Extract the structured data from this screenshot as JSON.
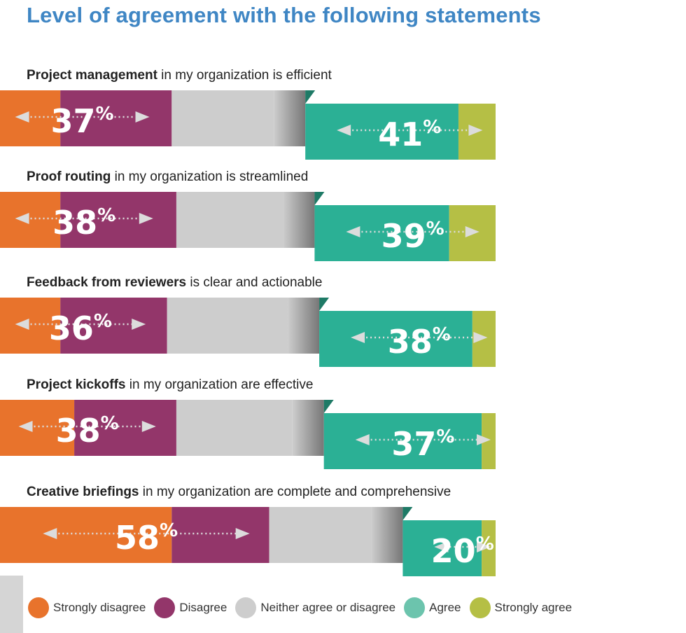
{
  "title": "Level of agreement with the following statements",
  "colors": {
    "strongly_disagree": "#e8732c",
    "disagree": "#93366a",
    "neither": "#cdcdcd",
    "agree": "#2bb095",
    "strongly_agree": "#b5bf45",
    "title": "#3f86c4",
    "arrow": "#dcdcdc"
  },
  "legend": [
    {
      "label": "Strongly disagree",
      "color": "#e8732c"
    },
    {
      "label": "Disagree",
      "color": "#93366a"
    },
    {
      "label": "Neither agree or disagree",
      "color": "#cdcdcd"
    },
    {
      "label": "Agree",
      "color": "#6cc4ad"
    },
    {
      "label": "Strongly agree",
      "color": "#b5bf45"
    }
  ],
  "chart_data": {
    "type": "bar",
    "title": "Level of agreement with the following statements",
    "categories": [
      "Project management in my organization is efficient",
      "Proof routing in my organization is streamlined",
      "Feedback from reviewers is clear and actionable",
      "Project kickoffs in my organization are effective",
      "Creative briefings in my organization are complete and comprehensive"
    ],
    "statements": [
      {
        "bold": "Project management",
        "rest": " in my organization is efficient",
        "disagree_total": "37",
        "agree_total": "41"
      },
      {
        "bold": "Proof routing",
        "rest": " in my organization is streamlined",
        "disagree_total": "38",
        "agree_total": "39"
      },
      {
        "bold": "Feedback from reviewers",
        "rest": " is clear and actionable",
        "disagree_total": "36",
        "agree_total": "38"
      },
      {
        "bold": "Project kickoffs",
        "rest": " in my organization are effective",
        "disagree_total": "38",
        "agree_total": "37"
      },
      {
        "bold": "Creative briefings",
        "rest": " in my organization are complete and comprehensive",
        "disagree_total": "58",
        "agree_total": "20"
      }
    ],
    "series": [
      {
        "name": "Strongly disagree",
        "values": [
          13,
          13,
          13,
          16,
          37
        ]
      },
      {
        "name": "Disagree",
        "values": [
          24,
          25,
          23,
          22,
          21
        ]
      },
      {
        "name": "Neither agree or disagree",
        "values": [
          22,
          23,
          26,
          25,
          22
        ]
      },
      {
        "name": "Agree",
        "values": [
          33,
          29,
          33,
          34,
          17
        ]
      },
      {
        "name": "Strongly agree",
        "values": [
          8,
          10,
          5,
          3,
          3
        ]
      }
    ],
    "percent_symbol": "%",
    "legend_position": "bottom",
    "grid": false
  }
}
